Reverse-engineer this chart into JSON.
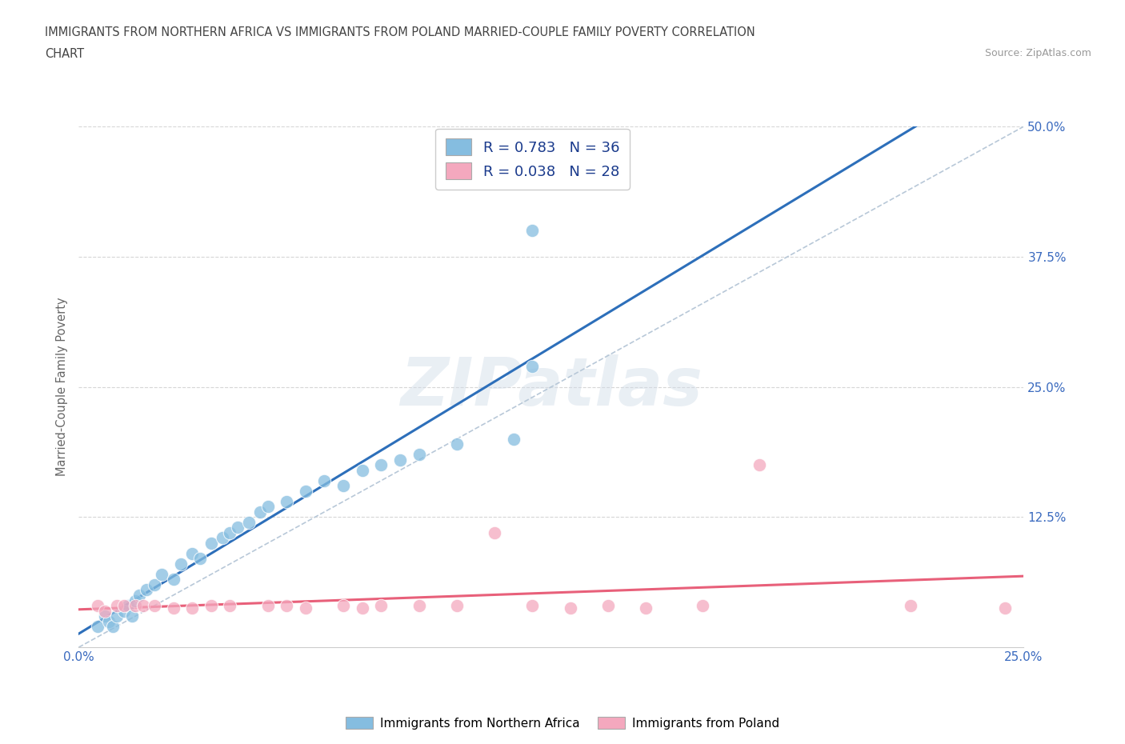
{
  "title_line1": "IMMIGRANTS FROM NORTHERN AFRICA VS IMMIGRANTS FROM POLAND MARRIED-COUPLE FAMILY POVERTY CORRELATION",
  "title_line2": "CHART",
  "source_text": "Source: ZipAtlas.com",
  "ylabel": "Married-Couple Family Poverty",
  "legend_bottom_labels": [
    "Immigrants from Northern Africa",
    "Immigrants from Poland"
  ],
  "R_africa": 0.783,
  "N_africa": 36,
  "R_poland": 0.038,
  "N_poland": 28,
  "color_africa": "#85bde0",
  "color_poland": "#f4a8be",
  "color_africa_line": "#2d6fba",
  "color_poland_line": "#e8607a",
  "color_diagonal": "#b8c8d8",
  "xlim": [
    0.0,
    0.25
  ],
  "ylim": [
    0.0,
    0.5
  ],
  "xtick_vals": [
    0.0,
    0.05,
    0.1,
    0.15,
    0.2,
    0.25
  ],
  "xtick_labels": [
    "0.0%",
    "",
    "",
    "",
    "",
    "25.0%"
  ],
  "ytick_vals": [
    0.0,
    0.125,
    0.25,
    0.375,
    0.5
  ],
  "ytick_labels": [
    "",
    "12.5%",
    "25.0%",
    "37.5%",
    "50.0%"
  ],
  "africa_x": [
    0.005,
    0.007,
    0.008,
    0.009,
    0.01,
    0.012,
    0.013,
    0.014,
    0.015,
    0.016,
    0.018,
    0.02,
    0.022,
    0.025,
    0.027,
    0.03,
    0.032,
    0.035,
    0.038,
    0.04,
    0.042,
    0.045,
    0.048,
    0.05,
    0.055,
    0.06,
    0.065,
    0.07,
    0.075,
    0.08,
    0.085,
    0.09,
    0.1,
    0.115,
    0.12,
    0.12
  ],
  "africa_y": [
    0.02,
    0.03,
    0.025,
    0.02,
    0.03,
    0.035,
    0.04,
    0.03,
    0.045,
    0.05,
    0.055,
    0.06,
    0.07,
    0.065,
    0.08,
    0.09,
    0.085,
    0.1,
    0.105,
    0.11,
    0.115,
    0.12,
    0.13,
    0.135,
    0.14,
    0.15,
    0.16,
    0.155,
    0.17,
    0.175,
    0.18,
    0.185,
    0.195,
    0.2,
    0.27,
    0.4
  ],
  "poland_x": [
    0.005,
    0.007,
    0.01,
    0.012,
    0.015,
    0.017,
    0.02,
    0.025,
    0.03,
    0.035,
    0.04,
    0.05,
    0.055,
    0.06,
    0.07,
    0.075,
    0.08,
    0.09,
    0.1,
    0.11,
    0.12,
    0.13,
    0.14,
    0.15,
    0.165,
    0.18,
    0.22,
    0.245
  ],
  "poland_y": [
    0.04,
    0.035,
    0.04,
    0.04,
    0.04,
    0.04,
    0.04,
    0.038,
    0.038,
    0.04,
    0.04,
    0.04,
    0.04,
    0.038,
    0.04,
    0.038,
    0.04,
    0.04,
    0.04,
    0.11,
    0.04,
    0.038,
    0.04,
    0.038,
    0.04,
    0.175,
    0.04,
    0.038
  ],
  "watermark_text": "ZIPatlas",
  "background_color": "#ffffff",
  "grid_color": "#cccccc",
  "title_color": "#444444",
  "axis_label_color": "#666666",
  "tick_color": "#3a6abf"
}
